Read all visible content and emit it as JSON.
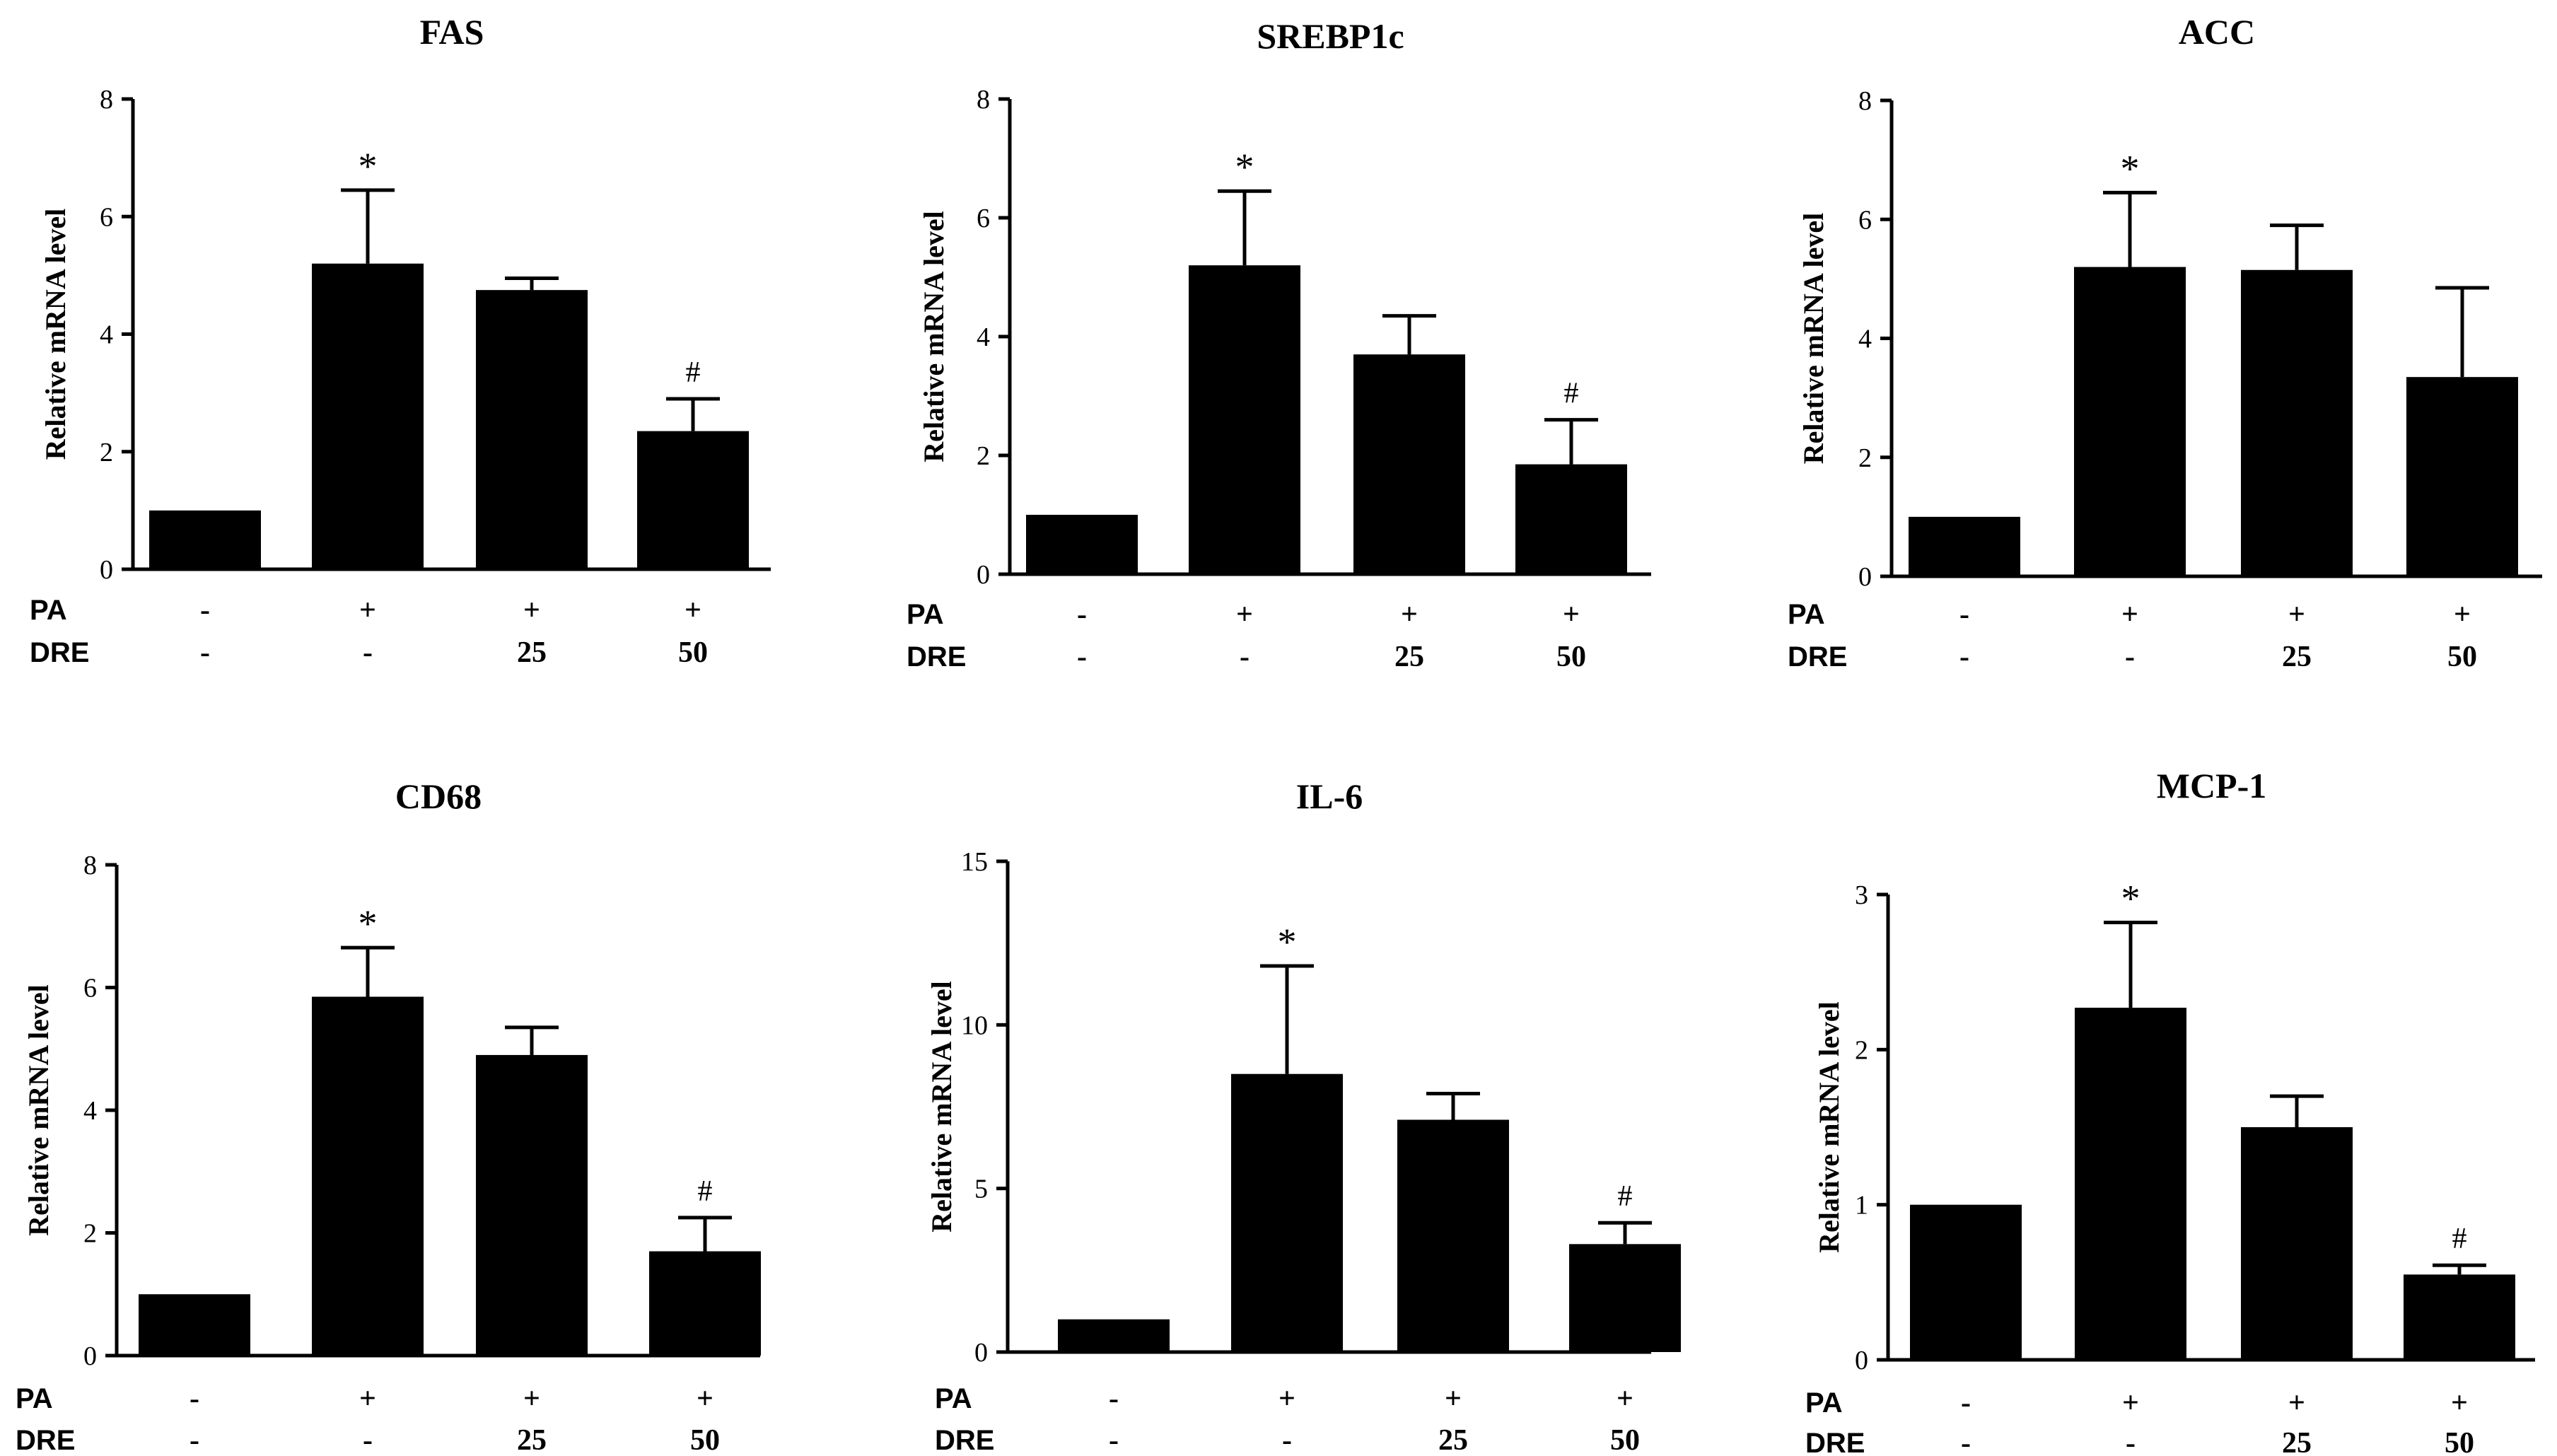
{
  "conditions": {
    "row_labels": [
      "PA",
      "DRE"
    ],
    "PA": [
      "-",
      "+",
      "+",
      "+"
    ],
    "DRE": [
      "-",
      "-",
      "25",
      "50"
    ]
  },
  "chart_data": [
    {
      "type": "bar",
      "title": "FAS",
      "ylabel": "Relative mRNA level",
      "ylim": [
        0,
        8
      ],
      "yticks": [
        0,
        2,
        4,
        6,
        8
      ],
      "values": [
        1.0,
        5.2,
        4.75,
        2.35
      ],
      "errors": [
        0,
        1.25,
        0.2,
        0.55
      ],
      "significance": [
        "",
        "*",
        "",
        "#"
      ]
    },
    {
      "type": "bar",
      "title": "SREBP1c",
      "ylabel": "Relative mRNA level",
      "ylim": [
        0,
        8
      ],
      "yticks": [
        0,
        2,
        4,
        6,
        8
      ],
      "values": [
        1.0,
        5.2,
        3.7,
        1.85
      ],
      "errors": [
        0,
        1.25,
        0.65,
        0.75
      ],
      "significance": [
        "",
        "*",
        "",
        "#"
      ]
    },
    {
      "type": "bar",
      "title": "ACC",
      "ylabel": "Relative mRNA level",
      "ylim": [
        0,
        8
      ],
      "yticks": [
        0,
        2,
        4,
        6,
        8
      ],
      "values": [
        1.0,
        5.2,
        5.15,
        3.35
      ],
      "errors": [
        0,
        1.25,
        0.75,
        1.5
      ],
      "significance": [
        "",
        "*",
        "",
        ""
      ]
    },
    {
      "type": "bar",
      "title": "CD68",
      "ylabel": "Relative mRNA level",
      "ylim": [
        0,
        8
      ],
      "yticks": [
        0,
        2,
        4,
        6,
        8
      ],
      "values": [
        1.0,
        5.85,
        4.9,
        1.7
      ],
      "errors": [
        0,
        0.8,
        0.45,
        0.55
      ],
      "significance": [
        "",
        "*",
        "",
        "#"
      ]
    },
    {
      "type": "bar",
      "title": "IL-6",
      "ylabel": "Relative mRNA level",
      "ylim": [
        0,
        15
      ],
      "yticks": [
        0,
        5,
        10,
        15
      ],
      "values": [
        1.0,
        8.5,
        7.1,
        3.3
      ],
      "errors": [
        0,
        3.3,
        0.8,
        0.65
      ],
      "significance": [
        "",
        "*",
        "",
        "#"
      ]
    },
    {
      "type": "bar",
      "title": "MCP-1",
      "ylabel": "Relative mRNA level",
      "ylim": [
        0,
        3
      ],
      "yticks": [
        0,
        1,
        2,
        3
      ],
      "values": [
        1.0,
        2.27,
        1.5,
        0.55
      ],
      "errors": [
        0,
        0.55,
        0.2,
        0.06
      ],
      "significance": [
        "",
        "*",
        "",
        "#"
      ]
    }
  ]
}
